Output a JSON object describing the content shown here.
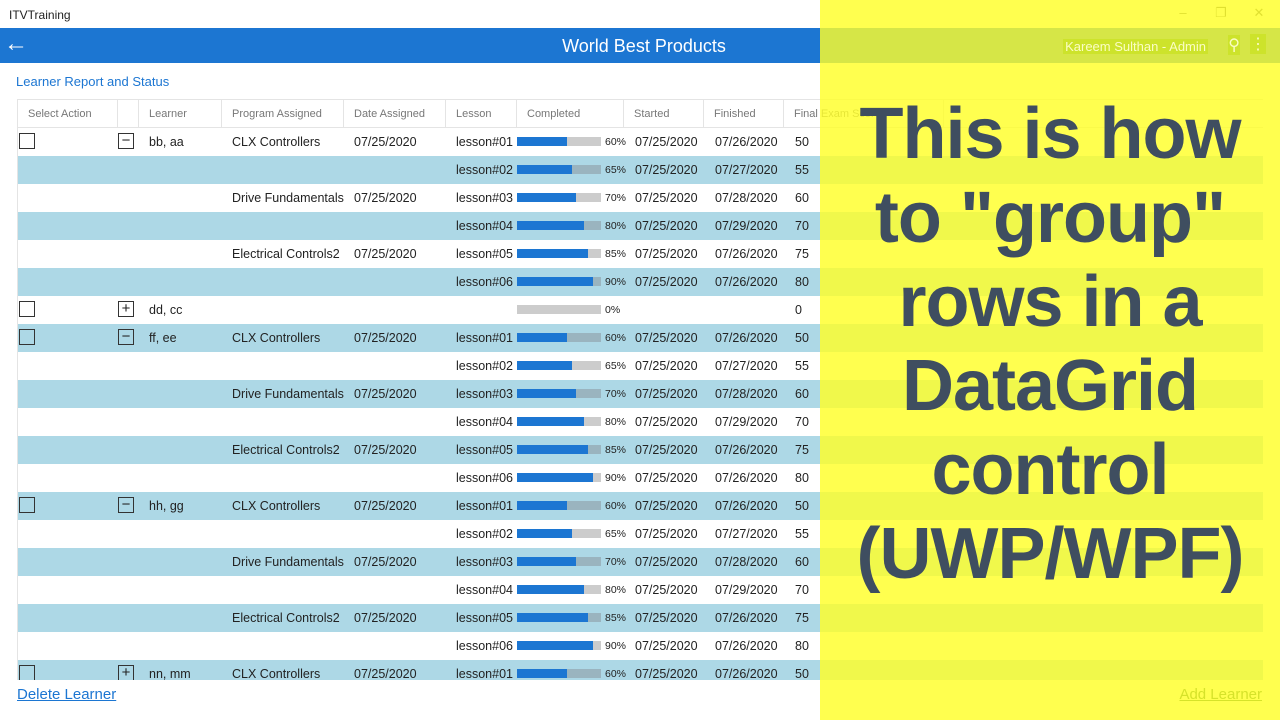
{
  "window": {
    "title": "ITVTraining"
  },
  "appbar": {
    "title": "World Best Products",
    "user": "Kareem Sulthan - Admin"
  },
  "page": {
    "subtitle": "Learner Report and Status"
  },
  "columns": [
    "Select Action",
    "",
    "Learner",
    "Program Assigned",
    "Date Assigned",
    "Lesson",
    "Completed",
    "Started",
    "Finished",
    "Final Exam Score"
  ],
  "rows": [
    {
      "group": true,
      "expanded": true,
      "learner": "bb, aa",
      "program": "CLX Controllers",
      "date": "07/25/2020",
      "lesson": "lesson#01",
      "completed": 60,
      "pct": "60%",
      "started": "07/25/2020",
      "finished": "07/26/2020",
      "score": "50"
    },
    {
      "lesson": "lesson#02",
      "completed": 65,
      "pct": "65%",
      "started": "07/25/2020",
      "finished": "07/27/2020",
      "score": "55"
    },
    {
      "program": "Drive Fundamentals",
      "date": "07/25/2020",
      "lesson": "lesson#03",
      "completed": 70,
      "pct": "70%",
      "started": "07/25/2020",
      "finished": "07/28/2020",
      "score": "60"
    },
    {
      "lesson": "lesson#04",
      "completed": 80,
      "pct": "80%",
      "started": "07/25/2020",
      "finished": "07/29/2020",
      "score": "70"
    },
    {
      "program": "Electrical Controls2",
      "date": "07/25/2020",
      "lesson": "lesson#05",
      "completed": 85,
      "pct": "85%",
      "started": "07/25/2020",
      "finished": "07/26/2020",
      "score": "75"
    },
    {
      "lesson": "lesson#06",
      "completed": 90,
      "pct": "90%",
      "started": "07/25/2020",
      "finished": "07/26/2020",
      "score": "80"
    },
    {
      "group": true,
      "expanded": false,
      "learner": "dd, cc",
      "completed": 0,
      "pct": "0%",
      "score": "0"
    },
    {
      "group": true,
      "expanded": true,
      "learner": "ff, ee",
      "program": "CLX Controllers",
      "date": "07/25/2020",
      "lesson": "lesson#01",
      "completed": 60,
      "pct": "60%",
      "started": "07/25/2020",
      "finished": "07/26/2020",
      "score": "50"
    },
    {
      "lesson": "lesson#02",
      "completed": 65,
      "pct": "65%",
      "started": "07/25/2020",
      "finished": "07/27/2020",
      "score": "55"
    },
    {
      "program": "Drive Fundamentals",
      "date": "07/25/2020",
      "lesson": "lesson#03",
      "completed": 70,
      "pct": "70%",
      "started": "07/25/2020",
      "finished": "07/28/2020",
      "score": "60"
    },
    {
      "lesson": "lesson#04",
      "completed": 80,
      "pct": "80%",
      "started": "07/25/2020",
      "finished": "07/29/2020",
      "score": "70"
    },
    {
      "program": "Electrical Controls2",
      "date": "07/25/2020",
      "lesson": "lesson#05",
      "completed": 85,
      "pct": "85%",
      "started": "07/25/2020",
      "finished": "07/26/2020",
      "score": "75"
    },
    {
      "lesson": "lesson#06",
      "completed": 90,
      "pct": "90%",
      "started": "07/25/2020",
      "finished": "07/26/2020",
      "score": "80"
    },
    {
      "group": true,
      "expanded": true,
      "learner": "hh, gg",
      "program": "CLX Controllers",
      "date": "07/25/2020",
      "lesson": "lesson#01",
      "completed": 60,
      "pct": "60%",
      "started": "07/25/2020",
      "finished": "07/26/2020",
      "score": "50"
    },
    {
      "lesson": "lesson#02",
      "completed": 65,
      "pct": "65%",
      "started": "07/25/2020",
      "finished": "07/27/2020",
      "score": "55"
    },
    {
      "program": "Drive Fundamentals",
      "date": "07/25/2020",
      "lesson": "lesson#03",
      "completed": 70,
      "pct": "70%",
      "started": "07/25/2020",
      "finished": "07/28/2020",
      "score": "60"
    },
    {
      "lesson": "lesson#04",
      "completed": 80,
      "pct": "80%",
      "started": "07/25/2020",
      "finished": "07/29/2020",
      "score": "70"
    },
    {
      "program": "Electrical Controls2",
      "date": "07/25/2020",
      "lesson": "lesson#05",
      "completed": 85,
      "pct": "85%",
      "started": "07/25/2020",
      "finished": "07/26/2020",
      "score": "75"
    },
    {
      "lesson": "lesson#06",
      "completed": 90,
      "pct": "90%",
      "started": "07/25/2020",
      "finished": "07/26/2020",
      "score": "80"
    },
    {
      "group": true,
      "expanded": false,
      "learner": "nn, mm",
      "program": "CLX Controllers",
      "date": "07/25/2020",
      "lesson": "lesson#01",
      "completed": 60,
      "pct": "60%",
      "started": "07/25/2020",
      "finished": "07/26/2020",
      "score": "50"
    }
  ],
  "footer": {
    "delete": "Delete Learner",
    "add": "Add Learner"
  },
  "overlay": {
    "lines": [
      "This is how",
      "to \"group\"",
      "rows in a",
      "DataGrid",
      "control",
      "(UWP/WPF)"
    ]
  },
  "icons": {
    "back": "arrow-left-icon",
    "search": "search-icon",
    "more": "more-vertical-icon",
    "expand": "plus-box-icon",
    "collapse": "minus-box-icon"
  },
  "colors": {
    "accent": "#1c76d2",
    "alt_row": "#add8e6",
    "overlay": "#ffff28"
  }
}
